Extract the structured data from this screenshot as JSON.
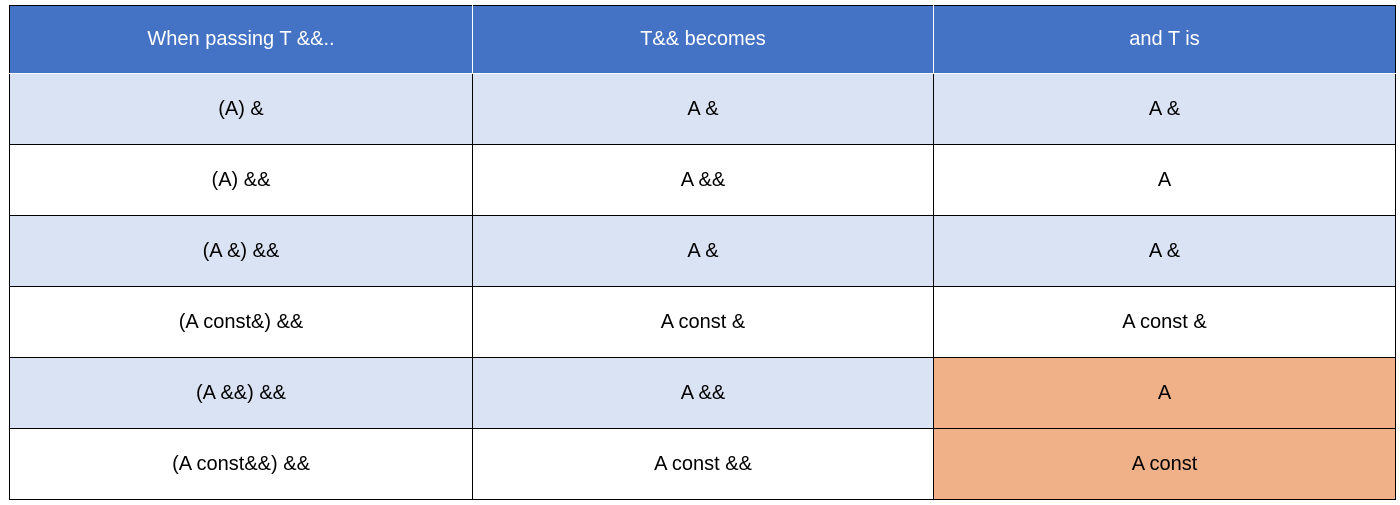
{
  "table": {
    "headers": [
      "When passing T &&..",
      "T&& becomes",
      "and T is"
    ],
    "rows": [
      {
        "cells": [
          "(A)  &",
          "A &",
          "A &"
        ],
        "band": "a",
        "highlight_last": false
      },
      {
        "cells": [
          "(A)  &&",
          "A &&",
          "A"
        ],
        "band": "b",
        "highlight_last": false
      },
      {
        "cells": [
          "(A &)  &&",
          "A &",
          "A &"
        ],
        "band": "a",
        "highlight_last": false
      },
      {
        "cells": [
          "(A const&)  &&",
          "A const &",
          "A const &"
        ],
        "band": "b",
        "highlight_last": false
      },
      {
        "cells": [
          "(A &&)  &&",
          "A &&",
          "A"
        ],
        "band": "a",
        "highlight_last": true
      },
      {
        "cells": [
          "(A const&&)  &&",
          "A const &&",
          "A const"
        ],
        "band": "b",
        "highlight_last": true
      }
    ]
  },
  "colors": {
    "header_bg": "#4472c4",
    "band_a": "#dae3f3",
    "band_b": "#ffffff",
    "highlight": "#f0b088"
  }
}
